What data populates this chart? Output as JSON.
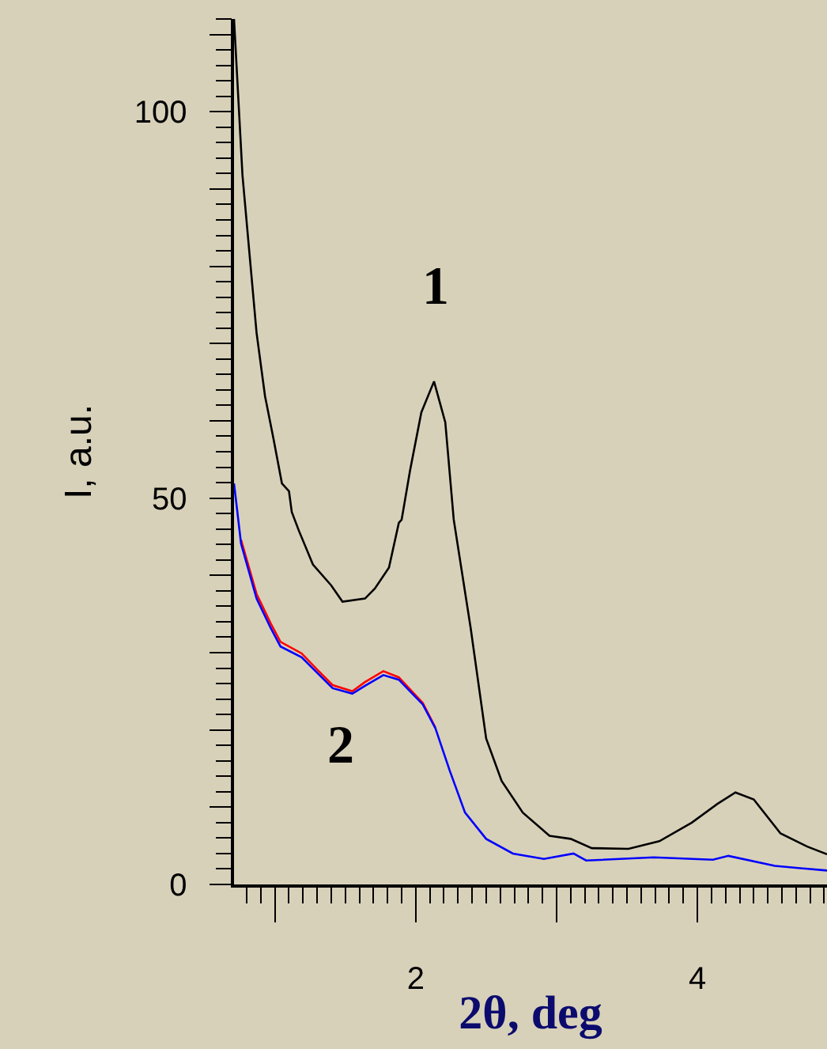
{
  "chart_data": {
    "type": "line",
    "xlabel": "2θ, deg",
    "ylabel": "I, a.u.",
    "annotations": [
      "1",
      "2"
    ],
    "xlim": [
      0.71,
      4.92
    ],
    "ylim": [
      0,
      112
    ],
    "xticks": [
      {
        "value": 1,
        "label": null
      },
      2,
      {
        "value": 3,
        "label": null
      },
      4
    ],
    "yticks": [
      0,
      {
        "value": 10,
        "label": null
      },
      {
        "value": 20,
        "label": null
      },
      {
        "value": 30,
        "label": null
      },
      {
        "value": 40,
        "label": null
      },
      50,
      {
        "value": 60,
        "label": null
      },
      {
        "value": 70,
        "label": null
      },
      {
        "value": 80,
        "label": null
      },
      {
        "value": 90,
        "label": null
      },
      100,
      {
        "value": 110,
        "label": null
      }
    ],
    "marker": "none",
    "line_style": "solid",
    "series": [
      {
        "color": "#000000",
        "x": [
          0.71,
          0.77,
          0.81,
          0.87,
          0.93,
          0.99,
          1.05,
          1.1,
          1.12,
          1.17,
          1.27,
          1.4,
          1.48,
          1.64,
          1.71,
          1.81,
          1.88,
          1.9,
          1.96,
          2.04,
          2.13,
          2.21,
          2.27,
          2.39,
          2.5,
          2.61,
          2.76,
          2.95,
          3.1,
          3.25,
          3.51,
          3.73,
          3.96,
          4.14,
          4.27,
          4.4,
          4.59,
          4.78,
          4.92
        ],
        "values": [
          112,
          91.8,
          83.6,
          71.4,
          63.2,
          57.7,
          51.9,
          50.9,
          48.2,
          45.8,
          41.4,
          38.7,
          36.6,
          37.0,
          38.3,
          41.0,
          46.8,
          47.2,
          53.6,
          61.1,
          65.1,
          59.8,
          47.2,
          33.2,
          18.9,
          13.4,
          9.3,
          6.3,
          5.9,
          4.7,
          4.6,
          5.6,
          8.0,
          10.4,
          11.9,
          11.0,
          6.6,
          4.9,
          3.9
        ]
      },
      {
        "color": "#ff0000",
        "x": [
          0.76,
          0.87,
          0.97,
          1.04,
          1.19,
          1.3,
          1.41,
          1.55,
          1.64,
          1.77,
          1.88,
          2.05,
          2.14
        ],
        "values": [
          44.6,
          37.6,
          33.8,
          31.4,
          29.9,
          27.8,
          25.8,
          25.0,
          26.2,
          27.6,
          26.8,
          23.5,
          20.3
        ]
      },
      {
        "color": "#0000ff",
        "x": [
          0.71,
          0.76,
          0.87,
          0.97,
          1.04,
          1.19,
          1.3,
          1.41,
          1.55,
          1.64,
          1.77,
          1.88,
          2.05,
          2.14,
          2.24,
          2.35,
          2.5,
          2.69,
          2.91,
          3.12,
          3.21,
          3.69,
          4.11,
          4.22,
          4.55,
          4.92
        ],
        "values": [
          51.9,
          44.1,
          37.0,
          33.2,
          30.8,
          29.4,
          27.4,
          25.4,
          24.7,
          25.7,
          27.1,
          26.5,
          23.3,
          20.2,
          14.8,
          9.3,
          5.9,
          4.0,
          3.3,
          4.0,
          3.1,
          3.5,
          3.2,
          3.7,
          2.4,
          1.8
        ]
      }
    ]
  }
}
